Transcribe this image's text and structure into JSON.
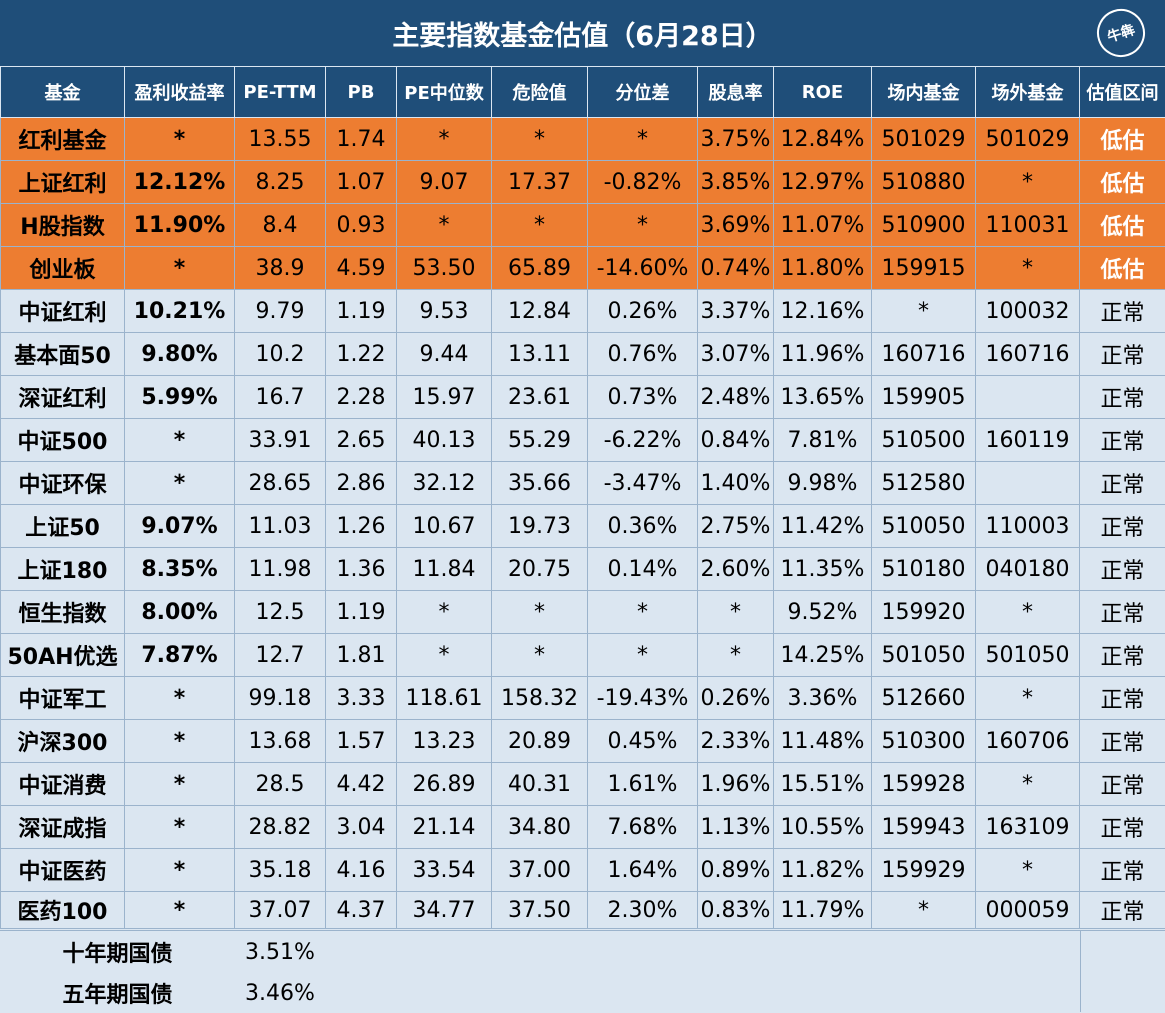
{
  "title": "主要指数基金估值（6月28日）",
  "logo_text": "牛犇",
  "colors": {
    "header_bg": "#1f4e79",
    "low_row_bg": "#ed7d31",
    "normal_row_bg": "#dbe6f1"
  },
  "columns": [
    "基金",
    "盈利收益率",
    "PE-TTM",
    "PB",
    "PE中位数",
    "危险值",
    "分位差",
    "股息率",
    "ROE",
    "场内基金",
    "场外基金",
    "估值区间"
  ],
  "rows": [
    {
      "status_class": "low",
      "cells": [
        "红利基金",
        "*",
        "13.55",
        "1.74",
        "*",
        "*",
        "*",
        "3.75%",
        "12.84%",
        "501029",
        "501029",
        "低估"
      ]
    },
    {
      "status_class": "low",
      "cells": [
        "上证红利",
        "12.12%",
        "8.25",
        "1.07",
        "9.07",
        "17.37",
        "-0.82%",
        "3.85%",
        "12.97%",
        "510880",
        "*",
        "低估"
      ]
    },
    {
      "status_class": "low",
      "cells": [
        "H股指数",
        "11.90%",
        "8.4",
        "0.93",
        "*",
        "*",
        "*",
        "3.69%",
        "11.07%",
        "510900",
        "110031",
        "低估"
      ]
    },
    {
      "status_class": "low",
      "cells": [
        "创业板",
        "*",
        "38.9",
        "4.59",
        "53.50",
        "65.89",
        "-14.60%",
        "0.74%",
        "11.80%",
        "159915",
        "*",
        "低估"
      ]
    },
    {
      "status_class": "normal",
      "cells": [
        "中证红利",
        "10.21%",
        "9.79",
        "1.19",
        "9.53",
        "12.84",
        "0.26%",
        "3.37%",
        "12.16%",
        "*",
        "100032",
        "正常"
      ]
    },
    {
      "status_class": "normal",
      "cells": [
        "基本面50",
        "9.80%",
        "10.2",
        "1.22",
        "9.44",
        "13.11",
        "0.76%",
        "3.07%",
        "11.96%",
        "160716",
        "160716",
        "正常"
      ]
    },
    {
      "status_class": "normal",
      "cells": [
        "深证红利",
        "5.99%",
        "16.7",
        "2.28",
        "15.97",
        "23.61",
        "0.73%",
        "2.48%",
        "13.65%",
        "159905",
        "",
        "正常"
      ]
    },
    {
      "status_class": "normal",
      "cells": [
        "中证500",
        "*",
        "33.91",
        "2.65",
        "40.13",
        "55.29",
        "-6.22%",
        "0.84%",
        "7.81%",
        "510500",
        "160119",
        "正常"
      ]
    },
    {
      "status_class": "normal",
      "cells": [
        "中证环保",
        "*",
        "28.65",
        "2.86",
        "32.12",
        "35.66",
        "-3.47%",
        "1.40%",
        "9.98%",
        "512580",
        "",
        "正常"
      ]
    },
    {
      "status_class": "normal",
      "cells": [
        "上证50",
        "9.07%",
        "11.03",
        "1.26",
        "10.67",
        "19.73",
        "0.36%",
        "2.75%",
        "11.42%",
        "510050",
        "110003",
        "正常"
      ]
    },
    {
      "status_class": "normal",
      "cells": [
        "上证180",
        "8.35%",
        "11.98",
        "1.36",
        "11.84",
        "20.75",
        "0.14%",
        "2.60%",
        "11.35%",
        "510180",
        "040180",
        "正常"
      ]
    },
    {
      "status_class": "normal",
      "cells": [
        "恒生指数",
        "8.00%",
        "12.5",
        "1.19",
        "*",
        "*",
        "*",
        "*",
        "9.52%",
        "159920",
        "*",
        "正常"
      ]
    },
    {
      "status_class": "normal",
      "cells": [
        "50AH优选",
        "7.87%",
        "12.7",
        "1.81",
        "*",
        "*",
        "*",
        "*",
        "14.25%",
        "501050",
        "501050",
        "正常"
      ]
    },
    {
      "status_class": "normal",
      "cells": [
        "中证军工",
        "*",
        "99.18",
        "3.33",
        "118.61",
        "158.32",
        "-19.43%",
        "0.26%",
        "3.36%",
        "512660",
        "*",
        "正常"
      ]
    },
    {
      "status_class": "normal",
      "cells": [
        "沪深300",
        "*",
        "13.68",
        "1.57",
        "13.23",
        "20.89",
        "0.45%",
        "2.33%",
        "11.48%",
        "510300",
        "160706",
        "正常"
      ]
    },
    {
      "status_class": "normal",
      "cells": [
        "中证消费",
        "*",
        "28.5",
        "4.42",
        "26.89",
        "40.31",
        "1.61%",
        "1.96%",
        "15.51%",
        "159928",
        "*",
        "正常"
      ]
    },
    {
      "status_class": "normal",
      "cells": [
        "深证成指",
        "*",
        "28.82",
        "3.04",
        "21.14",
        "34.80",
        "7.68%",
        "1.13%",
        "10.55%",
        "159943",
        "163109",
        "正常"
      ]
    },
    {
      "status_class": "normal",
      "cells": [
        "中证医药",
        "*",
        "35.18",
        "4.16",
        "33.54",
        "37.00",
        "1.64%",
        "0.89%",
        "11.82%",
        "159929",
        "*",
        "正常"
      ]
    },
    {
      "status_class": "normal",
      "cells": [
        "医药100",
        "*",
        "37.07",
        "4.37",
        "34.77",
        "37.50",
        "2.30%",
        "0.83%",
        "11.79%",
        "*",
        "000059",
        "正常"
      ]
    }
  ],
  "bonds": [
    {
      "label": "十年期国债",
      "value": "3.51%"
    },
    {
      "label": "五年期国债",
      "value": "3.46%"
    }
  ]
}
